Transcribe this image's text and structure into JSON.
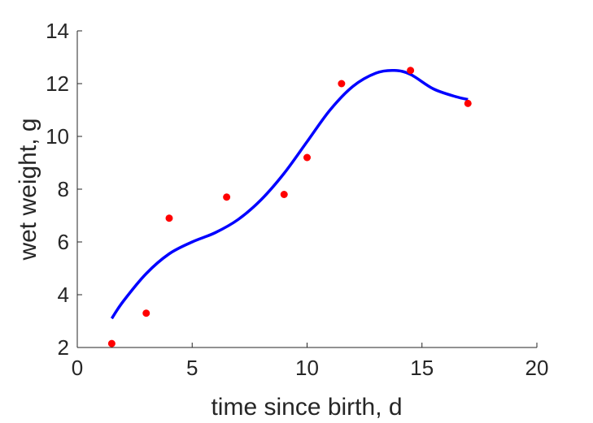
{
  "chart_data": {
    "type": "scatter",
    "xlabel": "time since birth, d",
    "ylabel": "wet weight, g",
    "xlim": [
      0,
      20
    ],
    "ylim": [
      2,
      14
    ],
    "xticks": [
      0,
      5,
      10,
      15,
      20
    ],
    "yticks": [
      2,
      4,
      6,
      8,
      10,
      12,
      14
    ],
    "grid": false,
    "series": [
      {
        "kind": "points",
        "color": "#ff0000",
        "x": [
          1.5,
          3.0,
          4.0,
          6.5,
          9.0,
          10.0,
          11.5,
          14.5,
          17.0
        ],
        "y": [
          2.15,
          3.3,
          6.9,
          7.7,
          7.8,
          9.2,
          12.0,
          12.5,
          11.25
        ]
      },
      {
        "kind": "curve",
        "color": "#0000ff",
        "x": [
          1.5,
          2.0,
          3.0,
          4.0,
          5.0,
          6.0,
          7.0,
          8.0,
          9.0,
          10.0,
          11.0,
          12.0,
          13.0,
          13.8,
          14.5,
          15.5,
          16.5,
          17.0
        ],
        "y": [
          3.1,
          3.75,
          4.8,
          5.55,
          6.0,
          6.35,
          6.85,
          7.6,
          8.6,
          9.8,
          11.0,
          11.9,
          12.4,
          12.5,
          12.35,
          11.8,
          11.5,
          11.4
        ]
      }
    ]
  }
}
